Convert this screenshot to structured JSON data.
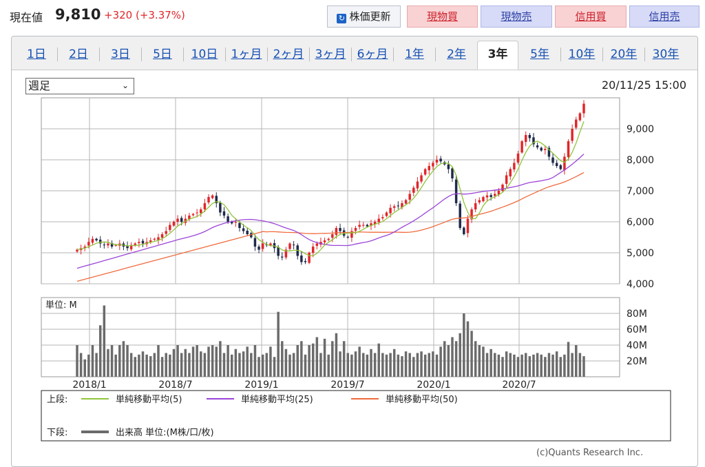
{
  "header": {
    "price_label": "現在値",
    "price_value": "9,810",
    "price_change": "+320 (+3.37%)",
    "refresh_label": "株価更新",
    "buttons": [
      "現物買",
      "現物売",
      "信用買",
      "信用売"
    ],
    "colors": {
      "up": "#e0262a",
      "down": "#1f2a4a",
      "buy_bg": "#f9d2d4",
      "sell_bg": "#d7dbf7"
    }
  },
  "tabs": [
    "1日",
    "2日",
    "3日",
    "5日",
    "10日",
    "1ヶ月",
    "2ヶ月",
    "3ヶ月",
    "6ヶ月",
    "1年",
    "2年",
    "3年",
    "5年",
    "10年",
    "20年",
    "30年"
  ],
  "active_tab": "3年",
  "period_select": "週足",
  "timestamp": "20/11/25 15:00",
  "legend": {
    "upper_label": "上段:",
    "ma5": "単純移動平均(5)",
    "ma25": "単純移動平均(25)",
    "ma50": "単純移動平均(50)",
    "lower_label": "下段:",
    "volume": "出来高 単位:(M株/口/枚)"
  },
  "copyright": "(c)Quants Research Inc.",
  "chart_data": {
    "type": "candlestick",
    "price_axis": {
      "ylim": [
        4000,
        10000
      ],
      "ticks": [
        "4,000",
        "5,000",
        "6,000",
        "7,000",
        "8,000",
        "9,000"
      ]
    },
    "volume_axis": {
      "unit_label": "単位: M",
      "ylim": [
        0,
        100
      ],
      "ticks": [
        "20M",
        "40M",
        "60M",
        "80M"
      ]
    },
    "x_ticks": [
      "2018/1",
      "2018/7",
      "2019/1",
      "2019/7",
      "2020/1",
      "2020/7"
    ],
    "grid": true,
    "weekly_close": [
      5100,
      5150,
      5200,
      5350,
      5450,
      5400,
      5300,
      5250,
      5300,
      5200,
      5250,
      5300,
      5200,
      5150,
      5250,
      5300,
      5350,
      5300,
      5350,
      5400,
      5450,
      5500,
      5600,
      5700,
      5900,
      6000,
      6100,
      6000,
      6100,
      6200,
      6250,
      6300,
      6400,
      6600,
      6800,
      6850,
      6600,
      6300,
      6200,
      6000,
      5950,
      6000,
      5800,
      5700,
      5600,
      5500,
      5200,
      5100,
      5300,
      5250,
      5300,
      5150,
      4900,
      4850,
      5100,
      5300,
      5250,
      4900,
      4700,
      4700,
      5000,
      5200,
      5300,
      5350,
      5400,
      5450,
      5600,
      5800,
      5700,
      5550,
      5500,
      5700,
      5800,
      5900,
      5900,
      5850,
      5950,
      6000,
      6100,
      6150,
      6300,
      6450,
      6500,
      6500,
      6600,
      6700,
      6900,
      7100,
      7300,
      7500,
      7700,
      7800,
      7900,
      8000,
      7950,
      7850,
      7700,
      7400,
      6600,
      5800,
      5600,
      6100,
      6400,
      6600,
      6700,
      6800,
      6850,
      6800,
      6900,
      7000,
      7200,
      7500,
      7700,
      7900,
      8200,
      8600,
      8800,
      8700,
      8500,
      8400,
      8300,
      8350,
      8100,
      7900,
      7800,
      7700,
      8100,
      8600,
      9000,
      9300,
      9500,
      9810
    ],
    "ma5_end": 9250,
    "ma25_end": 8250,
    "ma50_end": 7680,
    "volume_M": [
      40,
      30,
      22,
      28,
      40,
      30,
      65,
      90,
      35,
      40,
      28,
      40,
      45,
      40,
      30,
      25,
      28,
      32,
      28,
      26,
      30,
      40,
      25,
      30,
      28,
      35,
      40,
      30,
      35,
      30,
      38,
      40,
      32,
      30,
      38,
      40,
      38,
      45,
      30,
      40,
      28,
      35,
      30,
      32,
      38,
      30,
      40,
      25,
      28,
      30,
      38,
      25,
      82,
      45,
      35,
      28,
      30,
      40,
      45,
      28,
      40,
      42,
      50,
      30,
      48,
      28,
      45,
      55,
      32,
      45,
      30,
      28,
      32,
      38,
      30,
      28,
      35,
      30,
      42,
      30,
      28,
      30,
      35,
      28,
      26,
      32,
      30,
      25,
      30,
      32,
      28,
      30,
      32,
      28,
      38,
      45,
      40,
      50,
      45,
      55,
      80,
      70,
      58,
      45,
      40,
      38,
      30,
      35,
      30,
      28,
      25,
      32,
      30,
      28,
      25,
      28,
      30,
      26,
      28,
      30,
      28,
      25,
      30,
      28,
      32,
      25,
      28,
      44,
      30,
      40,
      30,
      26
    ]
  }
}
